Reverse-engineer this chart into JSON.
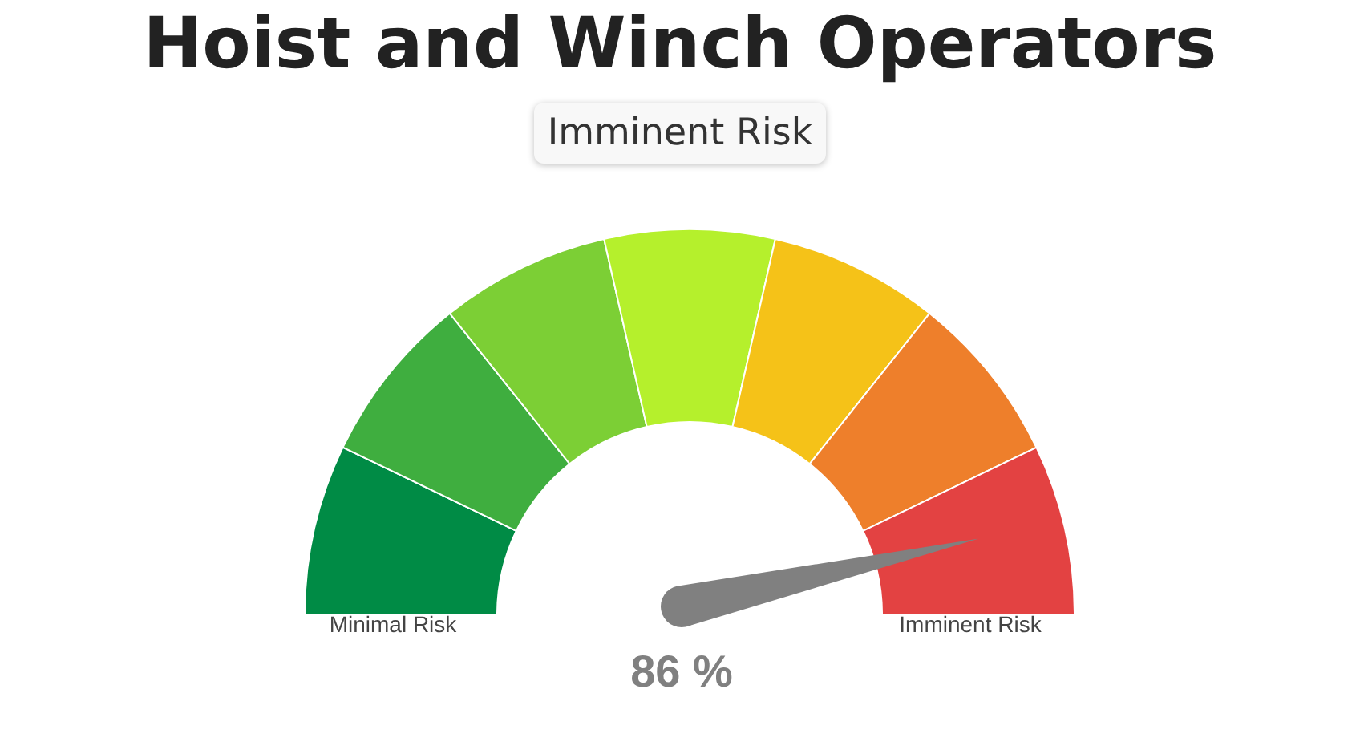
{
  "chart_data": {
    "type": "donut",
    "title": "Hoist and Winch Operators",
    "subtitle": "Imminent Risk",
    "categories": [
      "Minimal Risk",
      null,
      null,
      null,
      null,
      null,
      "Imminent Risk"
    ],
    "values": [
      14.29,
      14.29,
      14.28,
      14.29,
      14.28,
      14.29,
      14.28
    ],
    "colors": [
      "#008b45",
      "#3fae3f",
      "#7ccf35",
      "#b5f02c",
      "#f5c218",
      "#ee7f2b",
      "#e34242"
    ],
    "needle": "Imminent Risk",
    "annotations": [
      "86 %"
    ]
  }
}
